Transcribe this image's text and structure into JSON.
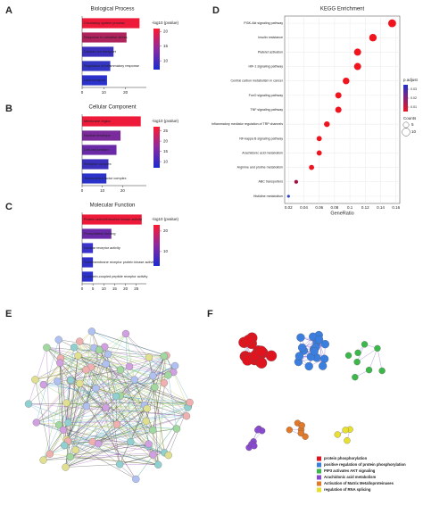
{
  "panel_labels": [
    "A",
    "B",
    "C",
    "D",
    "E",
    "F"
  ],
  "chart_data": [
    {
      "type": "bar",
      "orientation": "horizontal",
      "title": "Biological Process",
      "categories": [
        "Circulatory system process",
        "Response to oxidative stress",
        "Calcium ion transport",
        "Regulation of inflammatory response",
        "Lipid transport"
      ],
      "values": [
        26.5,
        20.5,
        14.5,
        13,
        11.5
      ],
      "colors": [
        "#ee1a3a",
        "#b0245e",
        "#3a30bc",
        "#3336c2",
        "#2b32cc"
      ],
      "xlim": [
        0,
        28
      ],
      "xticks": [
        0,
        10,
        20
      ],
      "colorbar": {
        "label": "-log10 (pvalue)",
        "lim": [
          7,
          21
        ],
        "ticks": [
          20,
          15,
          10
        ]
      }
    },
    {
      "type": "bar",
      "orientation": "horizontal",
      "title": "Cellular Component",
      "categories": [
        "Membrane region",
        "Nuclear envelope",
        "Cell-cell junction",
        "Receptor complex",
        "Transcription factor complex"
      ],
      "values": [
        29,
        19,
        17,
        13,
        12
      ],
      "colors": [
        "#ee1a3a",
        "#7a2a9a",
        "#6a2aa8",
        "#3a30bc",
        "#2b32cc"
      ],
      "xlim": [
        0,
        30
      ],
      "xticks": [
        0,
        10,
        20
      ],
      "colorbar": {
        "label": "-log10 (pvalue)",
        "lim": [
          7,
          27
        ],
        "ticks": [
          25,
          20,
          15,
          10
        ]
      }
    },
    {
      "type": "bar",
      "orientation": "horizontal",
      "title": "Molecular Function",
      "categories": [
        "Protein serine/threonine kinase activity",
        "Phosphatase binding",
        "Nuclear receptor activity",
        "Transmembrane receptor protein kinase activity",
        "G protein-coupled peptide receptor activity"
      ],
      "values": [
        27.5,
        13.5,
        5,
        5,
        5
      ],
      "colors": [
        "#ee1a3a",
        "#6a2aa8",
        "#3a34cc",
        "#3030c8",
        "#2b32cc"
      ],
      "xlim": [
        0,
        28
      ],
      "xticks": [
        0,
        5,
        10,
        15,
        20,
        25
      ],
      "colorbar": {
        "label": "-log10 (pvalue)",
        "lim": [
          3,
          23
        ],
        "ticks": [
          20,
          10
        ]
      }
    },
    {
      "type": "scatter",
      "title": "KEGG Enrichment",
      "xlabel": "GeneRatio",
      "categories": [
        "PI3K-Akt signaling pathway",
        "Insulin resistance",
        "Platelet activation",
        "HIF-1 signaling pathway",
        "Central carbon metabolism in cancer",
        "FoxO signaling pathway",
        "TNF signaling pathway",
        "Inflammatory mediator regulation of TRP channels",
        "NF-kappa B signaling pathway",
        "Arachidonic acid metabolism",
        "Arginine and proline metabolism",
        "ABC transporters",
        "Histidine metabolism"
      ],
      "values": [
        0.155,
        0.13,
        0.11,
        0.11,
        0.095,
        0.085,
        0.085,
        0.07,
        0.06,
        0.06,
        0.05,
        0.03,
        0.02
      ],
      "counts": [
        10,
        9,
        8,
        8,
        7,
        6,
        6,
        5,
        4,
        4,
        4,
        2,
        1
      ],
      "colors": [
        "#f0141e",
        "#f0141e",
        "#f0141e",
        "#f0141e",
        "#f0141e",
        "#f0141e",
        "#f0141e",
        "#f0141e",
        "#f0141e",
        "#f0141e",
        "#f0141e",
        "#a01040",
        "#2840c8"
      ],
      "xlim": [
        0.015,
        0.165
      ],
      "xticks": [
        0.02,
        0.04,
        0.06,
        0.08,
        0.1,
        0.12,
        0.14,
        0.16
      ],
      "color_legend": {
        "label": "p.adjust",
        "lim": [
          0.005,
          0.035
        ],
        "ticks": [
          0.03,
          0.02,
          0.01
        ]
      },
      "size_legend": {
        "label": "Counts",
        "values": [
          5,
          10
        ]
      }
    }
  ],
  "network_legend": [
    {
      "label": "protein phosphorylation",
      "color": "#e0141e"
    },
    {
      "label": "positive regulation of protein phosphorylation",
      "color": "#3a7ee0"
    },
    {
      "label": "PIP3 activates AKT signaling",
      "color": "#3cb84a"
    },
    {
      "label": "Arachidonic acid metabolism",
      "color": "#8a4ad0"
    },
    {
      "label": "Activation of Matrix Metalloproteinases",
      "color": "#e07a2a"
    },
    {
      "label": "regulation of RNA splicing",
      "color": "#e8e030"
    }
  ]
}
